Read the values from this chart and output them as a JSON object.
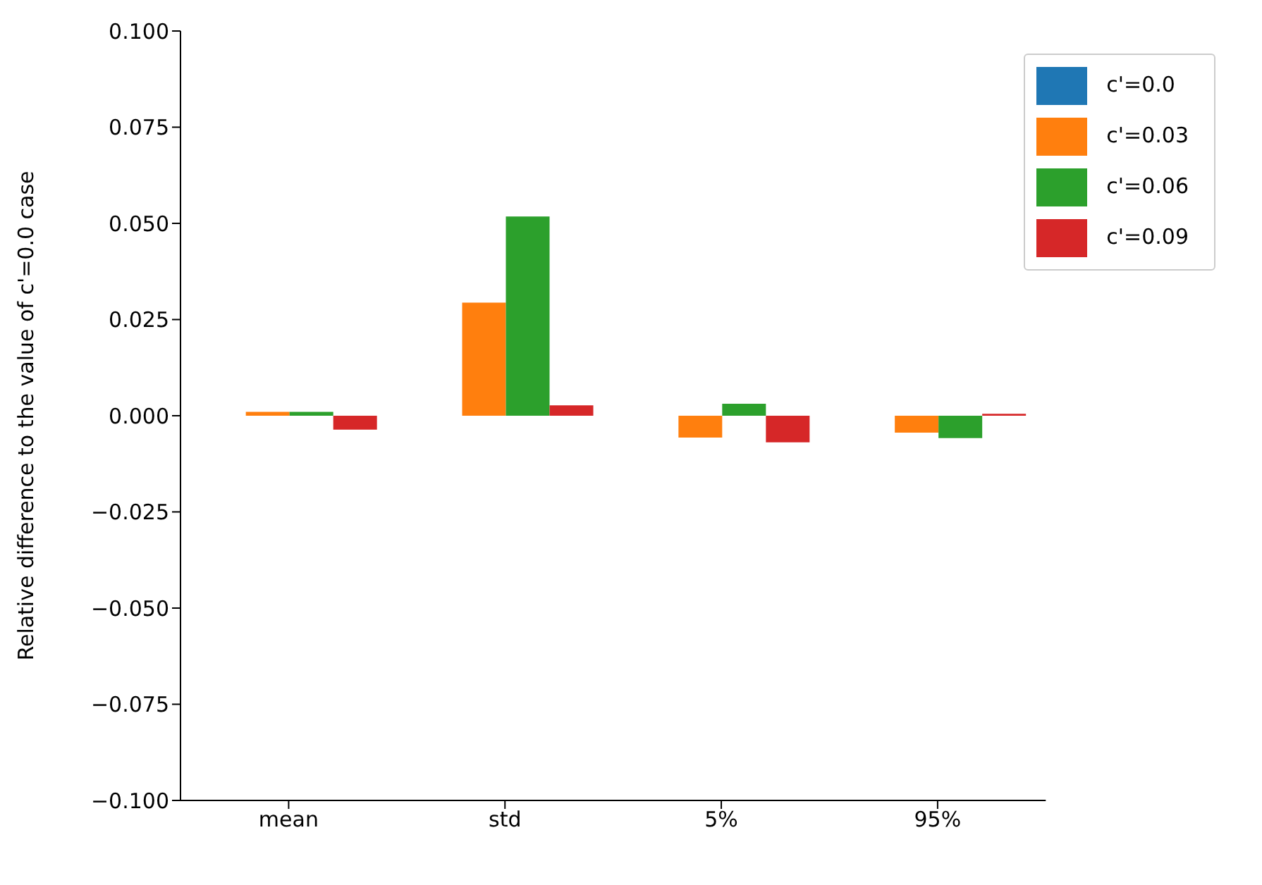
{
  "chart_data": {
    "type": "bar",
    "ylabel": "Relative difference to the value of c'=0.0 case",
    "categories": [
      "mean",
      "std",
      "5%",
      "95%"
    ],
    "series": [
      {
        "name": "c'=0.0",
        "color": "#1f77b4",
        "values": [
          0,
          0,
          0,
          0
        ]
      },
      {
        "name": "c'=0.03",
        "color": "#ff7f0e",
        "values": [
          0.001,
          0.0294,
          -0.0057,
          -0.0044
        ]
      },
      {
        "name": "c'=0.06",
        "color": "#2ca02c",
        "values": [
          0.001,
          0.0518,
          0.0031,
          -0.0058
        ]
      },
      {
        "name": "c'=0.09",
        "color": "#d62728",
        "values": [
          -0.0036,
          0.0027,
          -0.0069,
          0.0005
        ]
      }
    ],
    "ylim": [
      -0.1,
      0.1
    ],
    "yticks": [
      {
        "value": -0.1,
        "label": "−0.100"
      },
      {
        "value": -0.075,
        "label": "−0.075"
      },
      {
        "value": -0.05,
        "label": "−0.050"
      },
      {
        "value": -0.025,
        "label": "−0.025"
      },
      {
        "value": 0,
        "label": "0.000"
      },
      {
        "value": 0.025,
        "label": "0.025"
      },
      {
        "value": 0.05,
        "label": "0.050"
      },
      {
        "value": 0.075,
        "label": "0.075"
      },
      {
        "value": 0.1,
        "label": "0.100"
      }
    ],
    "grid": false,
    "legend": "top right"
  }
}
